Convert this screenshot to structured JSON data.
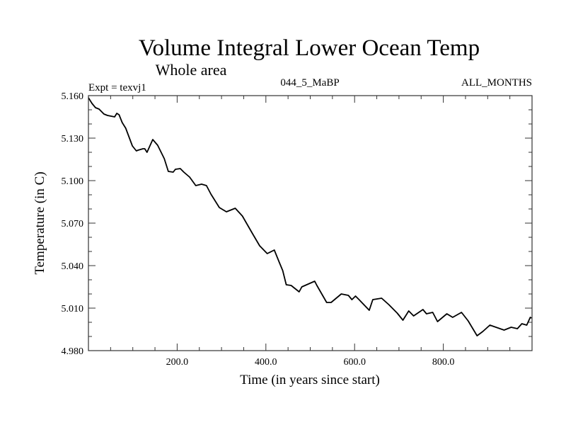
{
  "chart_data": {
    "type": "line",
    "title": "Volume Integral Lower Ocean Temp",
    "subtitle": "Whole area",
    "annotations": {
      "left": "Expt = texvj1",
      "center": "044_5_MaBP",
      "right": "ALL_MONTHS"
    },
    "xlabel": "Time (in years since start)",
    "ylabel": "Temperature (in C)",
    "xlim": [
      0,
      1000
    ],
    "ylim": [
      4.98,
      5.16
    ],
    "x_ticks": [
      200,
      400,
      600,
      800
    ],
    "x_tick_labels": [
      "200.0",
      "400.0",
      "600.0",
      "800.0"
    ],
    "x_minor_step": 50,
    "y_ticks": [
      4.98,
      5.01,
      5.04,
      5.07,
      5.1,
      5.13,
      5.16
    ],
    "y_tick_labels": [
      "4.980",
      "5.010",
      "5.040",
      "5.070",
      "5.100",
      "5.130",
      "5.160"
    ],
    "y_minor_step": 0.01,
    "grid": false,
    "legend": "none",
    "line_color": "#000000",
    "series": [
      {
        "name": "Volume Integral Lower Ocean Temp",
        "x": [
          0,
          8,
          16,
          24,
          35,
          43,
          51,
          59,
          64,
          69,
          76,
          84,
          99,
          108,
          112,
          123,
          127,
          132,
          145,
          156,
          171,
          180,
          191,
          196,
          207,
          215,
          228,
          242,
          255,
          266,
          276,
          295,
          311,
          331,
          347,
          370,
          386,
          403,
          419,
          430,
          438,
          446,
          457,
          475,
          481,
          510,
          515,
          537,
          547,
          570,
          586,
          594,
          602,
          610,
          633,
          641,
          661,
          677,
          696,
          709,
          722,
          733,
          754,
          762,
          776,
          787,
          808,
          821,
          841,
          856,
          876,
          889,
          905,
          937,
          953,
          967,
          977,
          988,
          996,
          999
        ],
        "y": [
          5.1585,
          5.1545,
          5.1515,
          5.1505,
          5.147,
          5.146,
          5.1455,
          5.145,
          5.1475,
          5.1465,
          5.141,
          5.137,
          5.1245,
          5.121,
          5.1215,
          5.1225,
          5.1225,
          5.12,
          5.129,
          5.125,
          5.1155,
          5.1065,
          5.106,
          5.108,
          5.1085,
          5.106,
          5.1025,
          5.0965,
          5.0975,
          5.0965,
          5.0905,
          5.081,
          5.078,
          5.0805,
          5.075,
          5.0625,
          5.054,
          5.0485,
          5.051,
          5.0425,
          5.0365,
          5.0265,
          5.026,
          5.0215,
          5.025,
          5.029,
          5.026,
          5.014,
          5.014,
          5.02,
          5.019,
          5.016,
          5.0185,
          5.016,
          5.0085,
          5.016,
          5.017,
          5.0125,
          5.0065,
          5.0015,
          5.008,
          5.0045,
          5.009,
          5.006,
          5.007,
          5.0005,
          5.006,
          5.0035,
          5.007,
          5.001,
          4.9905,
          4.9935,
          4.998,
          4.9945,
          4.9965,
          4.9955,
          4.999,
          4.998,
          5.0035,
          5.003
        ]
      }
    ]
  }
}
